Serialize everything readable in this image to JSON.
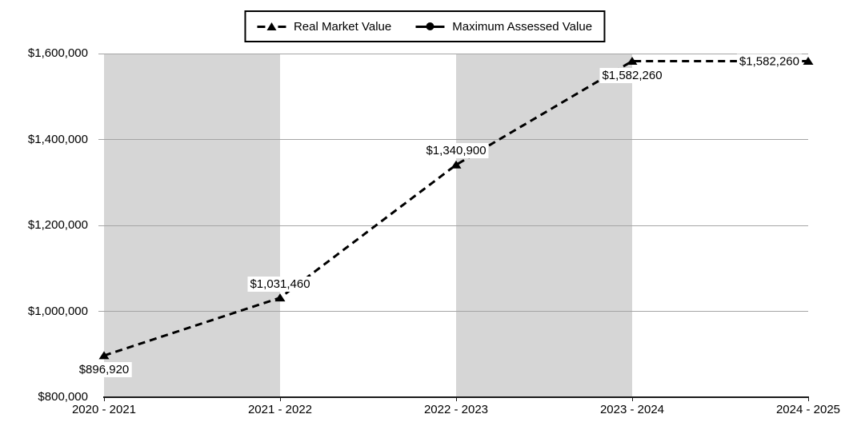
{
  "chart_data": {
    "type": "line",
    "categories": [
      "2020 - 2021",
      "2021 - 2022",
      "2022 - 2023",
      "2023 - 2024",
      "2024 - 2025"
    ],
    "series": [
      {
        "name": "Real Market Value",
        "line_style": "dashed",
        "marker": "triangle",
        "color": "#000000",
        "values": [
          896920,
          1031460,
          1340900,
          1582260,
          1582260
        ],
        "point_labels": [
          "$896,920",
          "$1,031,460",
          "$1,340,900",
          "$1,582,260",
          "$1,582,260"
        ],
        "label_positions": [
          "below",
          "above",
          "above",
          "below",
          "left"
        ]
      },
      {
        "name": "Maximum Assessed Value",
        "line_style": "solid",
        "marker": "circle",
        "color": "#000000",
        "values": []
      }
    ],
    "ylim": [
      800000,
      1600000
    ],
    "ytick_step": 200000,
    "ytick_labels": [
      "$800,000",
      "$1,000,000",
      "$1,200,000",
      "$1,400,000",
      "$1,600,000"
    ],
    "xlabel": "",
    "ylabel": "",
    "grid": true,
    "legend_position": "top-center",
    "shaded_intervals": [
      [
        0,
        1
      ],
      [
        2,
        3
      ]
    ],
    "colors": {
      "band": "#d6d6d6",
      "gridline": "#a5a5a5",
      "axis": "#1a1a1a",
      "text": "#000000",
      "label_background": "#ffffff"
    }
  }
}
